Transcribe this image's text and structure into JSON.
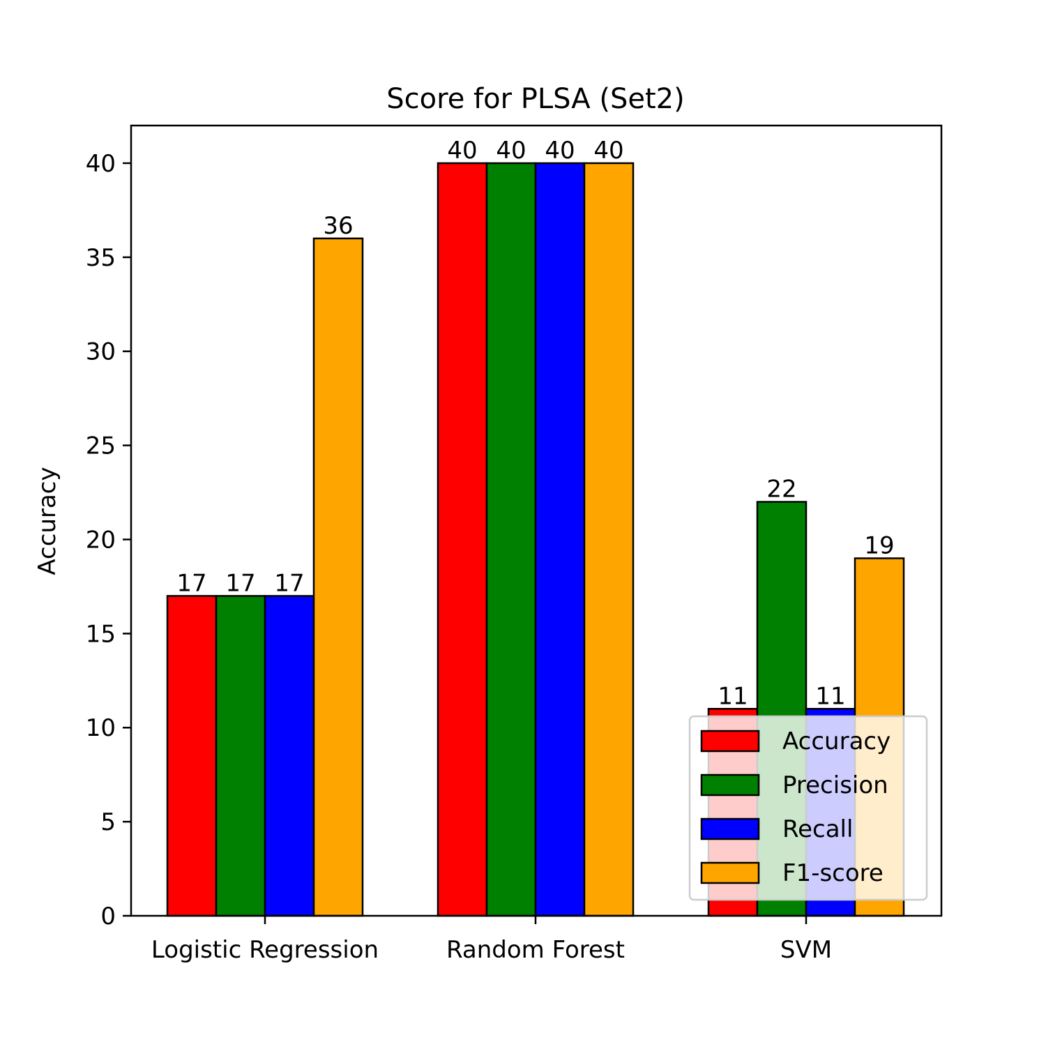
{
  "chart_data": {
    "type": "bar",
    "title": "Score for PLSA (Set2)",
    "xlabel": "",
    "ylabel": "Accuracy",
    "categories": [
      "Logistic Regression",
      "Random Forest",
      "SVM"
    ],
    "series": [
      {
        "name": "Accuracy",
        "color": "#ff0000",
        "values": [
          17,
          40,
          11
        ]
      },
      {
        "name": "Precision",
        "color": "#008000",
        "values": [
          17,
          40,
          22
        ]
      },
      {
        "name": "Recall",
        "color": "#0000ff",
        "values": [
          17,
          40,
          11
        ]
      },
      {
        "name": "F1-score",
        "color": "#ffa500",
        "values": [
          36,
          40,
          19
        ]
      }
    ],
    "data_labels": [
      [
        "17",
        "40",
        "11"
      ],
      [
        "17",
        "40",
        "22"
      ],
      [
        "17",
        "40",
        "11"
      ],
      [
        "36",
        "40",
        "19"
      ]
    ],
    "ylim": [
      0,
      42
    ],
    "yticks": [
      0,
      5,
      10,
      15,
      20,
      25,
      30,
      35,
      40
    ],
    "ytick_labels": [
      "0",
      "5",
      "10",
      "15",
      "20",
      "25",
      "30",
      "35",
      "40"
    ],
    "grid": false,
    "legend_position": "lower-right"
  }
}
